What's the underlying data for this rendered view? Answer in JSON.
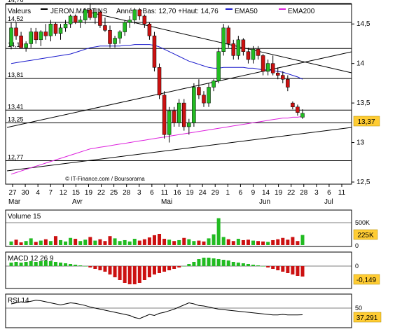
{
  "header": {
    "label_values": "Valeurs",
    "instrument": "JERON.MARTINS",
    "range_text": "Année +Bas: 12,70 +Haut: 14,76",
    "ema50_label": "EMA50",
    "ema200_label": "EMA200"
  },
  "colors": {
    "up": "#22bb22",
    "down": "#cc1111",
    "ema50": "#1a1acc",
    "ema200": "#dd22dd",
    "price_tag_bg": "#ffcc33",
    "value_tag_bg": "#ffcc33",
    "grid": "#000000"
  },
  "watermark": "© IT-Finance.com / Boursorama",
  "price_panel": {
    "left_levels": [
      "14,76",
      "14,52",
      "14,19",
      "13,81",
      "13,41",
      "13,25",
      "12,77"
    ],
    "right_ticks": [
      "14,5",
      "14",
      "13,5",
      "13",
      "12,5"
    ],
    "last_price": "13,37"
  },
  "x_axis": {
    "days": [
      "27",
      "30",
      "4",
      "7",
      "12",
      "15",
      "19",
      "22",
      "25",
      "28",
      "3",
      "6",
      "11",
      "16",
      "19",
      "24",
      "29",
      "1",
      "6",
      "9",
      "14",
      "19",
      "22",
      "28",
      "3",
      "6",
      "11"
    ],
    "months": [
      "Mar",
      "Avr",
      "Mai",
      "Jun",
      "Jul"
    ]
  },
  "volume_panel": {
    "title": "Volume 15",
    "ticks": [
      "500K",
      "0"
    ],
    "last_value": "225K"
  },
  "macd_panel": {
    "title": "MACD 12 26 9",
    "ticks": [
      "0"
    ],
    "last_value": "-0,149"
  },
  "rsi_panel": {
    "title": "RSI 14",
    "ticks": [
      "50"
    ],
    "last_value": "37,291"
  },
  "chart_data": {
    "type": "candlestick",
    "instrument": "JERON.MARTINS",
    "y_axis": {
      "ylim": [
        12.5,
        14.75
      ],
      "ticks": [
        14.5,
        14,
        13.5,
        13,
        12.5
      ]
    },
    "horizontal_levels": [
      14.76,
      14.52,
      14.19,
      13.81,
      13.41,
      13.25,
      12.77
    ],
    "candles": [
      [
        14.22,
        14.52,
        14.18,
        14.45
      ],
      [
        14.45,
        14.52,
        14.3,
        14.35
      ],
      [
        14.35,
        14.4,
        14.2,
        14.2
      ],
      [
        14.2,
        14.28,
        14.15,
        14.25
      ],
      [
        14.25,
        14.45,
        14.2,
        14.4
      ],
      [
        14.4,
        14.45,
        14.25,
        14.3
      ],
      [
        14.3,
        14.42,
        14.22,
        14.4
      ],
      [
        14.4,
        14.5,
        14.3,
        14.35
      ],
      [
        14.35,
        14.55,
        14.28,
        14.5
      ],
      [
        14.5,
        14.52,
        14.35,
        14.38
      ],
      [
        14.38,
        14.5,
        14.3,
        14.45
      ],
      [
        14.45,
        14.55,
        14.4,
        14.5
      ],
      [
        14.5,
        14.62,
        14.45,
        14.6
      ],
      [
        14.6,
        14.62,
        14.5,
        14.52
      ],
      [
        14.52,
        14.6,
        14.45,
        14.55
      ],
      [
        14.55,
        14.7,
        14.5,
        14.68
      ],
      [
        14.68,
        14.76,
        14.55,
        14.58
      ],
      [
        14.58,
        14.7,
        14.5,
        14.65
      ],
      [
        14.65,
        14.68,
        14.45,
        14.48
      ],
      [
        14.48,
        14.58,
        14.4,
        14.42
      ],
      [
        14.42,
        14.48,
        14.2,
        14.25
      ],
      [
        14.25,
        14.35,
        14.2,
        14.32
      ],
      [
        14.32,
        14.42,
        14.25,
        14.4
      ],
      [
        14.4,
        14.55,
        14.35,
        14.52
      ],
      [
        14.52,
        14.6,
        14.45,
        14.55
      ],
      [
        14.55,
        14.7,
        14.5,
        14.68
      ],
      [
        14.68,
        14.7,
        14.55,
        14.6
      ],
      [
        14.6,
        14.62,
        14.45,
        14.5
      ],
      [
        14.5,
        14.52,
        14.3,
        14.35
      ],
      [
        14.35,
        14.4,
        13.9,
        13.95
      ],
      [
        13.95,
        14.0,
        13.55,
        13.6
      ],
      [
        13.6,
        13.65,
        13.05,
        13.1
      ],
      [
        13.1,
        13.45,
        13.0,
        13.4
      ],
      [
        13.4,
        13.45,
        13.2,
        13.25
      ],
      [
        13.25,
        13.55,
        13.2,
        13.5
      ],
      [
        13.5,
        13.55,
        13.15,
        13.2
      ],
      [
        13.2,
        13.3,
        13.1,
        13.25
      ],
      [
        13.25,
        13.75,
        13.2,
        13.7
      ],
      [
        13.7,
        13.8,
        13.55,
        13.6
      ],
      [
        13.6,
        13.65,
        13.45,
        13.5
      ],
      [
        13.5,
        13.75,
        13.45,
        13.7
      ],
      [
        13.7,
        13.8,
        13.65,
        13.78
      ],
      [
        13.78,
        14.2,
        13.75,
        14.15
      ],
      [
        14.15,
        14.5,
        14.1,
        14.45
      ],
      [
        14.45,
        14.48,
        14.2,
        14.25
      ],
      [
        14.25,
        14.3,
        14.05,
        14.1
      ],
      [
        14.1,
        14.35,
        14.05,
        14.3
      ],
      [
        14.3,
        14.32,
        14.1,
        14.15
      ],
      [
        14.15,
        14.2,
        14.0,
        14.05
      ],
      [
        14.05,
        14.22,
        14.0,
        14.18
      ],
      [
        14.18,
        14.22,
        14.05,
        14.1
      ],
      [
        14.1,
        14.12,
        13.85,
        13.9
      ],
      [
        13.9,
        14.05,
        13.85,
        14.0
      ],
      [
        14.0,
        14.1,
        13.85,
        13.88
      ],
      [
        13.88,
        13.95,
        13.8,
        13.85
      ],
      [
        13.85,
        13.9,
        13.75,
        13.8
      ],
      [
        13.8,
        13.85,
        13.65,
        13.7
      ],
      [
        13.5,
        13.52,
        13.42,
        13.45
      ],
      [
        13.45,
        13.48,
        13.34,
        13.38
      ],
      [
        13.32,
        13.42,
        13.3,
        13.37
      ]
    ],
    "series": [
      {
        "name": "EMA50",
        "values": [
          14.0,
          14.01,
          14.02,
          14.03,
          14.04,
          14.05,
          14.06,
          14.07,
          14.08,
          14.09,
          14.1,
          14.11,
          14.12,
          14.14,
          14.16,
          14.18,
          14.2,
          14.21,
          14.22,
          14.22,
          14.22,
          14.22,
          14.22,
          14.23,
          14.23,
          14.24,
          14.24,
          14.24,
          14.24,
          14.23,
          14.21,
          14.18,
          14.15,
          14.12,
          14.09,
          14.06,
          14.03,
          14.01,
          13.99,
          13.97,
          13.95,
          13.94,
          13.94,
          13.95,
          13.95,
          13.95,
          13.95,
          13.95,
          13.94,
          13.94,
          13.93,
          13.92,
          13.92,
          13.91,
          13.9,
          13.89,
          13.87,
          13.85,
          13.83,
          13.8
        ]
      },
      {
        "name": "EMA200",
        "values": [
          12.6,
          12.62,
          12.64,
          12.66,
          12.68,
          12.7,
          12.72,
          12.74,
          12.76,
          12.78,
          12.8,
          12.82,
          12.84,
          12.86,
          12.88,
          12.9,
          12.92,
          12.93,
          12.94,
          12.95,
          12.96,
          12.97,
          12.98,
          12.99,
          13.0,
          13.01,
          13.02,
          13.03,
          13.04,
          13.05,
          13.06,
          13.07,
          13.08,
          13.09,
          13.1,
          13.11,
          13.12,
          13.13,
          13.14,
          13.15,
          13.16,
          13.17,
          13.18,
          13.19,
          13.2,
          13.21,
          13.22,
          13.23,
          13.24,
          13.25,
          13.26,
          13.27,
          13.28,
          13.29,
          13.3,
          13.31,
          13.31,
          13.32,
          13.32,
          13.33
        ]
      }
    ],
    "volume": [
      80,
      120,
      60,
      90,
      150,
      70,
      100,
      130,
      90,
      200,
      110,
      80,
      160,
      140,
      90,
      120,
      180,
      100,
      130,
      90,
      200,
      150,
      90,
      110,
      80,
      140,
      100,
      130,
      170,
      220,
      250,
      140,
      120,
      90,
      110,
      160,
      130,
      90,
      100,
      80,
      150,
      240,
      600,
      180,
      130,
      90,
      140,
      110,
      120,
      100,
      90,
      80,
      70,
      110,
      130,
      160,
      120,
      180,
      90,
      225
    ],
    "macd": [
      0.05,
      0.06,
      0.05,
      0.06,
      0.07,
      0.06,
      0.07,
      0.08,
      0.07,
      0.06,
      0.05,
      0.04,
      0.03,
      0.02,
      0.01,
      0.0,
      -0.02,
      -0.04,
      -0.06,
      -0.08,
      -0.12,
      -0.16,
      -0.2,
      -0.24,
      -0.26,
      -0.26,
      -0.24,
      -0.2,
      -0.16,
      -0.12,
      -0.1,
      -0.08,
      -0.06,
      -0.04,
      -0.02,
      0.0,
      0.03,
      0.06,
      0.1,
      0.12,
      0.12,
      0.11,
      0.1,
      0.09,
      0.08,
      0.06,
      0.05,
      0.04,
      0.03,
      0.02,
      0.01,
      0.0,
      -0.02,
      -0.04,
      -0.06,
      -0.08,
      -0.1,
      -0.12,
      -0.14,
      -0.149
    ],
    "rsi": [
      58,
      60,
      62,
      61,
      63,
      65,
      64,
      62,
      60,
      58,
      56,
      58,
      60,
      59,
      57,
      55,
      52,
      50,
      48,
      46,
      44,
      42,
      40,
      38,
      36,
      32,
      30,
      34,
      38,
      36,
      40,
      42,
      45,
      48,
      52,
      56,
      60,
      58,
      55,
      54,
      52,
      50,
      48,
      47,
      46,
      45,
      44,
      43,
      42,
      41,
      40,
      39,
      38,
      37,
      37,
      38,
      37,
      37,
      37,
      37.291
    ]
  }
}
